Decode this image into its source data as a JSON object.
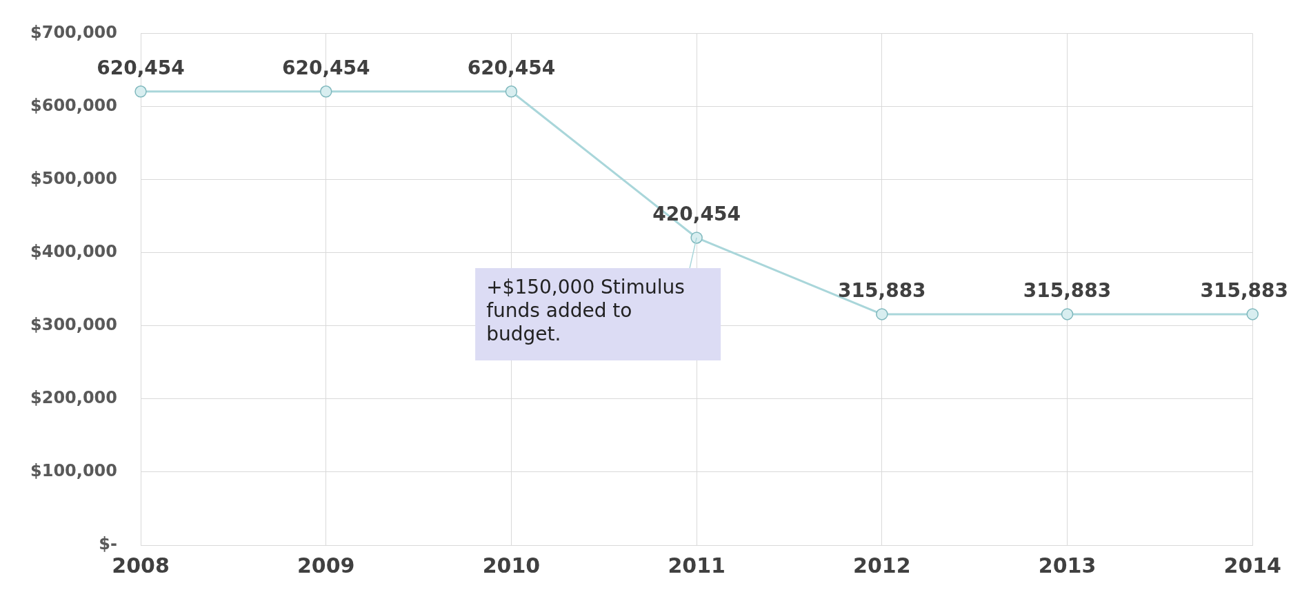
{
  "chart_data": {
    "type": "line",
    "categories": [
      "2008",
      "2009",
      "2010",
      "2011",
      "2012",
      "2013",
      "2014"
    ],
    "series": [
      {
        "color": "#a9d6da",
        "values": [
          620454,
          620454,
          620454,
          420454,
          315883,
          315883,
          315883
        ],
        "value_labels": [
          "620,454",
          "620,454",
          "620,454",
          "420,454",
          "315,883",
          "315,883",
          "315,883"
        ]
      }
    ],
    "ylim": [
      0,
      700000
    ],
    "yticks": [
      {
        "value": 0,
        "label": "$-"
      },
      {
        "value": 100000,
        "label": "$100,000"
      },
      {
        "value": 200000,
        "label": "$200,000"
      },
      {
        "value": 300000,
        "label": "$300,000"
      },
      {
        "value": 400000,
        "label": "$400,000"
      },
      {
        "value": 500000,
        "label": "$500,000"
      },
      {
        "value": 600000,
        "label": "$600,000"
      },
      {
        "value": 700000,
        "label": "$700,000"
      }
    ],
    "grid": true,
    "legend": false,
    "marker": "circle",
    "line_style": "solid",
    "annotations": [
      {
        "text": "+$150,000 Stimulus funds added to budget.",
        "x": "2011",
        "y": 420454
      }
    ]
  }
}
